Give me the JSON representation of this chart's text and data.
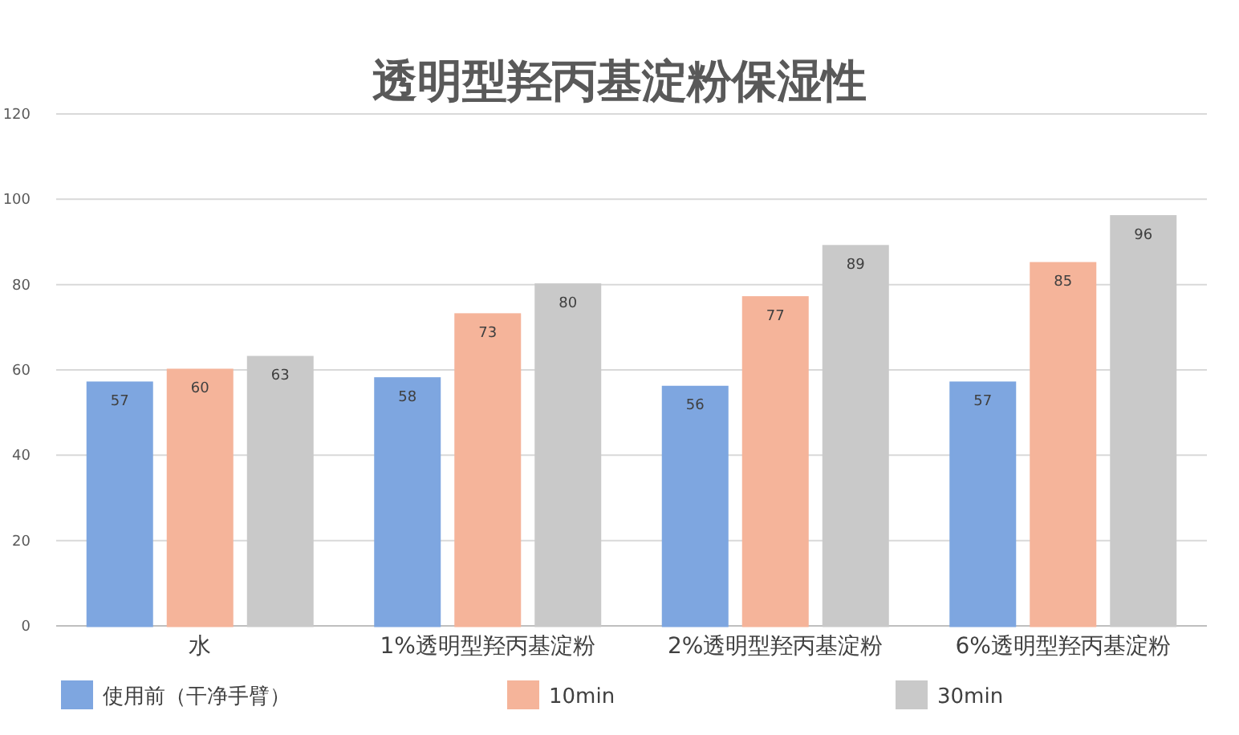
{
  "chart_data": {
    "type": "bar",
    "title": "透明型羟丙基淀粉保湿性",
    "categories": [
      "水",
      "1%透明型羟丙基淀粉",
      "2%透明型羟丙基淀粉",
      "6%透明型羟丙基淀粉"
    ],
    "series": [
      {
        "name": "使用前（干净手臂）",
        "color": "#7ea6e0",
        "values": [
          57,
          58,
          56,
          57
        ]
      },
      {
        "name": "10min",
        "color": "#f5b49a",
        "values": [
          60,
          73,
          77,
          85
        ]
      },
      {
        "name": "30min",
        "color": "#c9c9c9",
        "values": [
          63,
          80,
          89,
          96
        ]
      }
    ],
    "ylim": [
      0,
      120
    ],
    "yticks": [
      0,
      20,
      40,
      60,
      80,
      100,
      120
    ],
    "grid": "y",
    "legend": "bottom",
    "data_labels": true
  }
}
